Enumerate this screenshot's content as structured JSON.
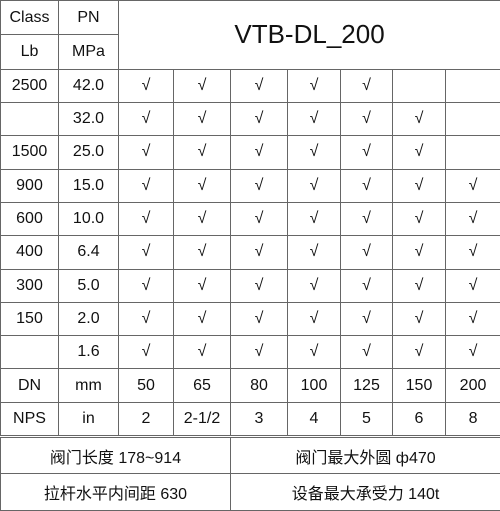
{
  "header": {
    "class": "Class",
    "lb": "Lb",
    "pn": "PN",
    "mpa": "MPa",
    "title": "VTB-DL_200"
  },
  "rows": [
    {
      "class": "2500",
      "pn": "42.0",
      "marks": [
        "√",
        "√",
        "√",
        "√",
        "√",
        null,
        null
      ]
    },
    {
      "class": null,
      "pn": "32.0",
      "marks": [
        "√",
        "√",
        "√",
        "√",
        "√",
        "√",
        null
      ]
    },
    {
      "class": "1500",
      "pn": "25.0",
      "marks": [
        "√",
        "√",
        "√",
        "√",
        "√",
        "√",
        null
      ]
    },
    {
      "class": "900",
      "pn": "15.0",
      "marks": [
        "√",
        "√",
        "√",
        "√",
        "√",
        "√",
        "√"
      ]
    },
    {
      "class": "600",
      "pn": "10.0",
      "marks": [
        "√",
        "√",
        "√",
        "√",
        "√",
        "√",
        "√"
      ]
    },
    {
      "class": "400",
      "pn": "6.4",
      "marks": [
        "√",
        "√",
        "√",
        "√",
        "√",
        "√",
        "√"
      ]
    },
    {
      "class": "300",
      "pn": "5.0",
      "marks": [
        "√",
        "√",
        "√",
        "√",
        "√",
        "√",
        "√"
      ]
    },
    {
      "class": "150",
      "pn": "2.0",
      "marks": [
        "√",
        "√",
        "√",
        "√",
        "√",
        "√",
        "√"
      ]
    },
    {
      "class": null,
      "pn": "1.6",
      "marks": [
        "√",
        "√",
        "√",
        "√",
        "√",
        "√",
        "√"
      ]
    }
  ],
  "dn": {
    "label": "DN",
    "unit": "mm",
    "values": [
      "50",
      "65",
      "80",
      "100",
      "125",
      "150",
      "200"
    ]
  },
  "nps": {
    "label": "NPS",
    "unit": "in",
    "values": [
      "2",
      "2-1/2",
      "3",
      "4",
      "5",
      "6",
      "8"
    ]
  },
  "footer": [
    [
      "阀门长度 178~914",
      "阀门最大外圆 ф470"
    ],
    [
      "拉杆水平内间距 630",
      "设备最大承受力 140t"
    ]
  ]
}
